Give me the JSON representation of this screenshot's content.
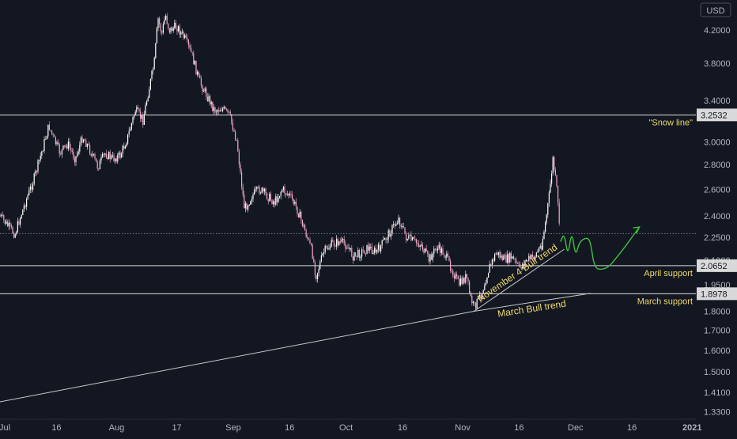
{
  "currency_label": "USD",
  "colors": {
    "background": "#131722",
    "candle": "#f2a7c6",
    "candle_light": "#ffffff",
    "hline": "#d9d9d9",
    "price_label_bg": "#d9d9d9",
    "price_label_text": "#131722",
    "axis_text": "#b2b5be",
    "annotation": "#f0d96a",
    "trend_label": "#f0d96a",
    "trendline": "#c8c8c8",
    "projection": "#3fbf3f"
  },
  "chart_data": {
    "type": "line",
    "title": "",
    "xlabel": "",
    "ylabel": "",
    "y_scale": "log",
    "ylim": [
      1.3,
      4.6
    ],
    "xlim": [
      "2020-07-01",
      "2021-01-02"
    ],
    "y_ticks": [
      "4.2000",
      "3.8000",
      "3.4000",
      "3.0000",
      "2.8000",
      "2.6000",
      "2.4000",
      "2.2500",
      "2.1000",
      "1.9500",
      "1.8000",
      "1.7000",
      "1.6000",
      "1.5000",
      "1.4100",
      "1.3300"
    ],
    "x_ticks": [
      {
        "date": "2020-07-01",
        "label": "Jul"
      },
      {
        "date": "2020-07-16",
        "label": "16"
      },
      {
        "date": "2020-08-01",
        "label": "Aug"
      },
      {
        "date": "2020-08-17",
        "label": "17"
      },
      {
        "date": "2020-09-01",
        "label": "Sep"
      },
      {
        "date": "2020-09-16",
        "label": "16"
      },
      {
        "date": "2020-10-01",
        "label": "Oct"
      },
      {
        "date": "2020-10-16",
        "label": "16"
      },
      {
        "date": "2020-11-01",
        "label": "Nov"
      },
      {
        "date": "2020-11-16",
        "label": "16"
      },
      {
        "date": "2020-12-01",
        "label": "Dec"
      },
      {
        "date": "2020-12-16",
        "label": "16"
      },
      {
        "date": "2021-01-01",
        "label": "2021"
      }
    ],
    "series": [
      {
        "values": [
          [
            "2020-07-01",
            2.4
          ],
          [
            "2020-07-03",
            2.33
          ],
          [
            "2020-07-05",
            2.27
          ],
          [
            "2020-07-06",
            2.36
          ],
          [
            "2020-07-08",
            2.52
          ],
          [
            "2020-07-10",
            2.68
          ],
          [
            "2020-07-12",
            2.9
          ],
          [
            "2020-07-14",
            3.15
          ],
          [
            "2020-07-15",
            3.05
          ],
          [
            "2020-07-17",
            2.9
          ],
          [
            "2020-07-19",
            2.98
          ],
          [
            "2020-07-21",
            2.85
          ],
          [
            "2020-07-23",
            3.05
          ],
          [
            "2020-07-25",
            2.92
          ],
          [
            "2020-07-27",
            2.78
          ],
          [
            "2020-07-29",
            2.9
          ],
          [
            "2020-07-31",
            2.85
          ],
          [
            "2020-08-02",
            2.88
          ],
          [
            "2020-08-04",
            3.05
          ],
          [
            "2020-08-06",
            3.3
          ],
          [
            "2020-08-08",
            3.2
          ],
          [
            "2020-08-09",
            3.4
          ],
          [
            "2020-08-11",
            3.8
          ],
          [
            "2020-08-12",
            4.35
          ],
          [
            "2020-08-13",
            4.15
          ],
          [
            "2020-08-14",
            4.4
          ],
          [
            "2020-08-15",
            4.2
          ],
          [
            "2020-08-17",
            4.25
          ],
          [
            "2020-08-19",
            4.1
          ],
          [
            "2020-08-21",
            3.9
          ],
          [
            "2020-08-23",
            3.6
          ],
          [
            "2020-08-25",
            3.45
          ],
          [
            "2020-08-27",
            3.3
          ],
          [
            "2020-08-29",
            3.32
          ],
          [
            "2020-08-31",
            3.25
          ],
          [
            "2020-09-02",
            3.0
          ],
          [
            "2020-09-03",
            2.7
          ],
          [
            "2020-09-04",
            2.45
          ],
          [
            "2020-09-06",
            2.55
          ],
          [
            "2020-09-08",
            2.6
          ],
          [
            "2020-09-10",
            2.55
          ],
          [
            "2020-09-12",
            2.5
          ],
          [
            "2020-09-14",
            2.6
          ],
          [
            "2020-09-16",
            2.55
          ],
          [
            "2020-09-18",
            2.45
          ],
          [
            "2020-09-20",
            2.3
          ],
          [
            "2020-09-22",
            2.15
          ],
          [
            "2020-09-23",
            2.0
          ],
          [
            "2020-09-25",
            2.15
          ],
          [
            "2020-09-27",
            2.2
          ],
          [
            "2020-09-29",
            2.22
          ],
          [
            "2020-10-01",
            2.2
          ],
          [
            "2020-10-03",
            2.12
          ],
          [
            "2020-10-05",
            2.15
          ],
          [
            "2020-10-07",
            2.18
          ],
          [
            "2020-10-09",
            2.15
          ],
          [
            "2020-10-11",
            2.22
          ],
          [
            "2020-10-13",
            2.3
          ],
          [
            "2020-10-15",
            2.38
          ],
          [
            "2020-10-17",
            2.25
          ],
          [
            "2020-10-19",
            2.22
          ],
          [
            "2020-10-21",
            2.2
          ],
          [
            "2020-10-23",
            2.1
          ],
          [
            "2020-10-25",
            2.18
          ],
          [
            "2020-10-27",
            2.15
          ],
          [
            "2020-10-29",
            2.05
          ],
          [
            "2020-10-31",
            1.95
          ],
          [
            "2020-11-02",
            2.0
          ],
          [
            "2020-11-03",
            1.88
          ],
          [
            "2020-11-04",
            1.82
          ],
          [
            "2020-11-06",
            1.9
          ],
          [
            "2020-11-08",
            2.05
          ],
          [
            "2020-11-10",
            2.15
          ],
          [
            "2020-11-12",
            2.1
          ],
          [
            "2020-11-14",
            2.12
          ],
          [
            "2020-11-16",
            2.05
          ],
          [
            "2020-11-18",
            2.1
          ],
          [
            "2020-11-20",
            2.12
          ],
          [
            "2020-11-22",
            2.2
          ],
          [
            "2020-11-23",
            2.35
          ],
          [
            "2020-11-24",
            2.55
          ],
          [
            "2020-11-25",
            2.85
          ],
          [
            "2020-11-26",
            2.6
          ],
          [
            "2020-11-27",
            2.25
          ]
        ]
      }
    ],
    "horizontal_lines": [
      {
        "value": 3.2532,
        "label": "3.2532",
        "annotation": "\"Snow line\""
      },
      {
        "value": 2.0652,
        "label": "2.0652",
        "annotation": "April support"
      },
      {
        "value": 1.8978,
        "label": "1.8978",
        "annotation": "March support"
      }
    ],
    "dotted_line": {
      "value": 2.275
    },
    "trendlines": [
      {
        "label": "March Bull trend",
        "points": [
          [
            "2020-07-01",
            1.37
          ],
          [
            "2020-11-04",
            1.8
          ],
          [
            "2020-12-05",
            1.9
          ]
        ]
      },
      {
        "label": "November 4 Bull trend",
        "points": [
          [
            "2020-11-04",
            1.8
          ],
          [
            "2020-11-28",
            2.17
          ]
        ]
      }
    ],
    "projection": {
      "points": [
        [
          "2020-11-27",
          2.22
        ],
        [
          "2020-11-28",
          2.28
        ],
        [
          "2020-11-29",
          2.12
        ],
        [
          "2020-11-30",
          2.3
        ],
        [
          "2020-12-01",
          2.12
        ],
        [
          "2020-12-02",
          2.22
        ],
        [
          "2020-12-04",
          2.25
        ],
        [
          "2020-12-05",
          2.22
        ],
        [
          "2020-12-06",
          2.05
        ],
        [
          "2020-12-08",
          2.04
        ],
        [
          "2020-12-10",
          2.06
        ],
        [
          "2020-12-12",
          2.12
        ],
        [
          "2020-12-14",
          2.18
        ],
        [
          "2020-12-16",
          2.25
        ],
        [
          "2020-12-18",
          2.32
        ]
      ]
    }
  }
}
